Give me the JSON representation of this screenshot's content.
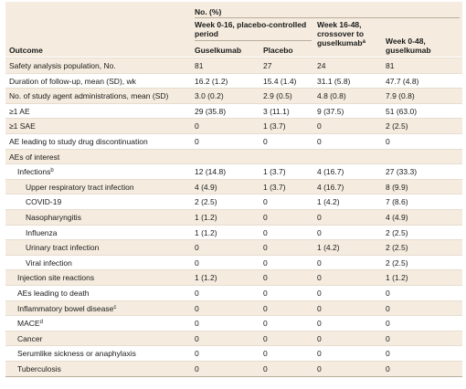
{
  "table": {
    "group_header": "No. (%)",
    "period_header": "Week 0-16, placebo-controlled period",
    "crossover_header": {
      "text": "Week 16-48, crossover to guselkumab",
      "note": "a"
    },
    "total_header": "Week 0-48, guselkumab",
    "columns": [
      "Outcome",
      "Guselkumab",
      "Placebo"
    ],
    "rows": [
      {
        "label": "Safety analysis population, No.",
        "values": [
          "81",
          "27",
          "24",
          "81"
        ]
      },
      {
        "label": "Duration of follow-up, mean (SD), wk",
        "values": [
          "16.2 (1.2)",
          "15.4 (1.4)",
          "31.1 (5.8)",
          "47.7 (4.8)"
        ]
      },
      {
        "label": "No. of study agent administrations, mean (SD)",
        "values": [
          "3.0 (0.2)",
          "2.9 (0.5)",
          "4.8 (0.8)",
          "7.9 (0.8)"
        ]
      },
      {
        "label": "≥1 AE",
        "values": [
          "29 (35.8)",
          "3 (11.1)",
          "9 (37.5)",
          "51 (63.0)"
        ]
      },
      {
        "label": "≥1 SAE",
        "values": [
          "0",
          "1 (3.7)",
          "0",
          "2 (2.5)"
        ]
      },
      {
        "label": "AE leading to study drug discontinuation",
        "values": [
          "0",
          "0",
          "0",
          "0"
        ]
      },
      {
        "label": "AEs of interest",
        "values": []
      },
      {
        "label": "Infections",
        "note": "b",
        "values": [
          "12 (14.8)",
          "1 (3.7)",
          "4 (16.7)",
          "27 (33.3)"
        ]
      },
      {
        "label": "Upper respiratory tract infection",
        "values": [
          "4 (4.9)",
          "1 (3.7)",
          "4 (16.7)",
          "8 (9.9)"
        ]
      },
      {
        "label": "COVID-19",
        "values": [
          "2 (2.5)",
          "0",
          "1 (4.2)",
          "7 (8.6)"
        ]
      },
      {
        "label": "Nasopharyngitis",
        "values": [
          "1 (1.2)",
          "0",
          "0",
          "4 (4.9)"
        ]
      },
      {
        "label": "Influenza",
        "values": [
          "1 (1.2)",
          "0",
          "0",
          "2 (2.5)"
        ]
      },
      {
        "label": "Urinary tract infection",
        "values": [
          "0",
          "0",
          "1 (4.2)",
          "2 (2.5)"
        ]
      },
      {
        "label": "Viral infection",
        "values": [
          "0",
          "0",
          "0",
          "2 (2.5)"
        ]
      },
      {
        "label": "Injection site reactions",
        "values": [
          "1 (1.2)",
          "0",
          "0",
          "1 (1.2)"
        ]
      },
      {
        "label": "AEs leading to death",
        "values": [
          "0",
          "0",
          "0",
          "0"
        ]
      },
      {
        "label": "Inflammatory bowel disease",
        "note": "c",
        "values": [
          "0",
          "0",
          "0",
          "0"
        ]
      },
      {
        "label": "MACE",
        "note": "d",
        "values": [
          "0",
          "0",
          "0",
          "0"
        ]
      },
      {
        "label": "Cancer",
        "values": [
          "0",
          "0",
          "0",
          "0"
        ]
      },
      {
        "label": "Serumlike sickness or anaphylaxis",
        "values": [
          "0",
          "0",
          "0",
          "0"
        ]
      },
      {
        "label": "Tuberculosis",
        "values": [
          "0",
          "0",
          "0",
          "0"
        ]
      }
    ]
  }
}
